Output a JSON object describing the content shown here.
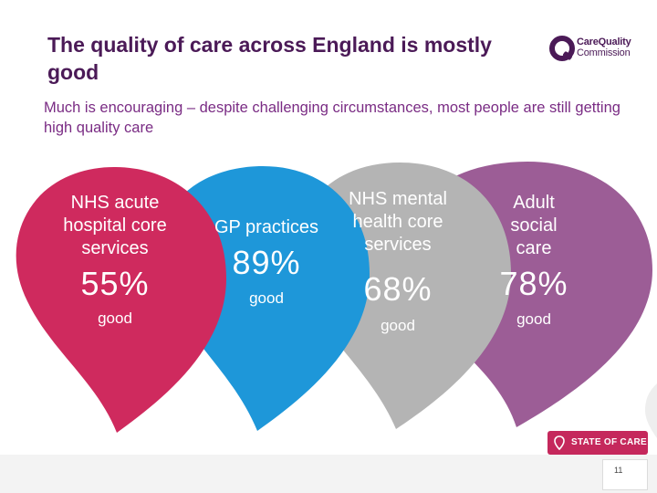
{
  "header": {
    "title": "The quality of care across England is mostly good",
    "subtitle": "Much is encouraging – despite challenging circumstances, most people are still getting high quality care"
  },
  "logo": {
    "line1": "CareQuality",
    "line2": "Commission",
    "color": "#4b1a57"
  },
  "cards": [
    {
      "label": "NHS acute hospital core services",
      "percent": "55%",
      "value": 0.55,
      "rating": "good",
      "color": "#cf2a5e"
    },
    {
      "label": "GP practices",
      "percent": "89%",
      "value": 0.89,
      "rating": "good",
      "color": "#1e97d9"
    },
    {
      "label": "NHS mental health core services",
      "percent": "68%",
      "value": 0.68,
      "rating": "good",
      "color": "#b4b4b4"
    },
    {
      "label": "Adult social care",
      "percent": "78%",
      "value": 0.78,
      "rating": "good",
      "color": "#9c5d96"
    }
  ],
  "footer": {
    "badge_label": "STATE OF CARE",
    "badge_icon": "map-pin-icon",
    "badge_color": "#c5285c",
    "page_number": "11"
  }
}
